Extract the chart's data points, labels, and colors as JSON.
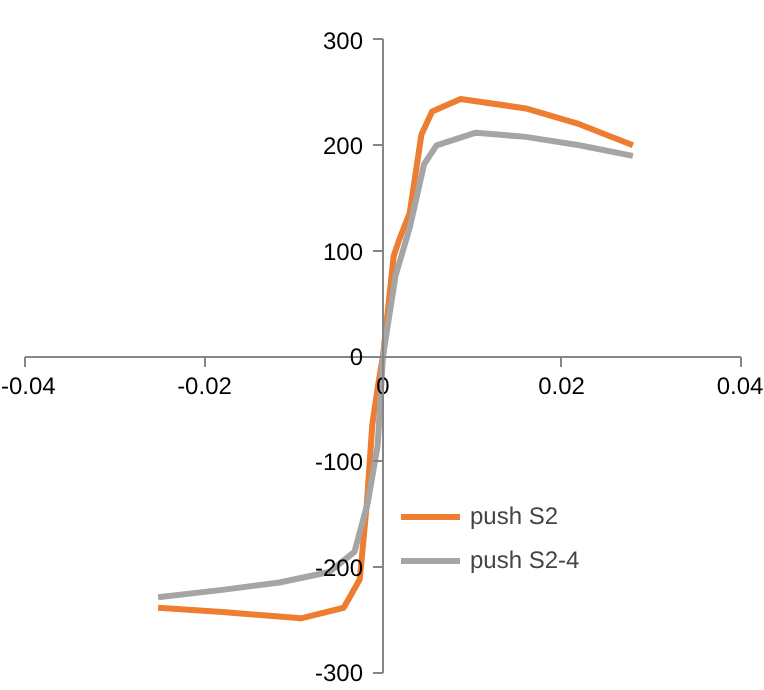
{
  "chart_data": {
    "type": "line",
    "xlim": [
      -0.04,
      0.04
    ],
    "ylim": [
      -300,
      300
    ],
    "xticks": [
      -0.04,
      -0.02,
      0,
      0.02,
      0.04
    ],
    "yticks": [
      -300,
      -200,
      -100,
      0,
      100,
      200,
      300
    ],
    "grid": false,
    "legend": "right",
    "marker": "none",
    "line_style": "solid",
    "series": [
      {
        "name": "push S2",
        "color": "#ed7d31",
        "x": [
          -0.0252,
          -0.018,
          -0.0092,
          -0.0044,
          -0.0026,
          -0.0018,
          -0.0012,
          -0.0005,
          0,
          0.0012,
          0.0018,
          0.003,
          0.0043,
          0.0055,
          0.0087,
          0.016,
          0.022,
          0.028
        ],
        "values": [
          -239,
          -243,
          -249,
          -239,
          -212,
          -139,
          -65,
          -25,
          0,
          95,
          110,
          136,
          210,
          232,
          244,
          235,
          220,
          200
        ]
      },
      {
        "name": "push S2-4",
        "color": "#a5a5a5",
        "x": [
          -0.0252,
          -0.018,
          -0.0116,
          -0.006,
          -0.0032,
          -0.0017,
          -0.0006,
          0,
          0.0014,
          0.003,
          0.0046,
          0.006,
          0.0104,
          0.016,
          0.022,
          0.028
        ],
        "values": [
          -229,
          -222,
          -215,
          -205,
          -186,
          -139,
          -85,
          0,
          76,
          122,
          182,
          200,
          212,
          208,
          200,
          190
        ]
      }
    ]
  }
}
